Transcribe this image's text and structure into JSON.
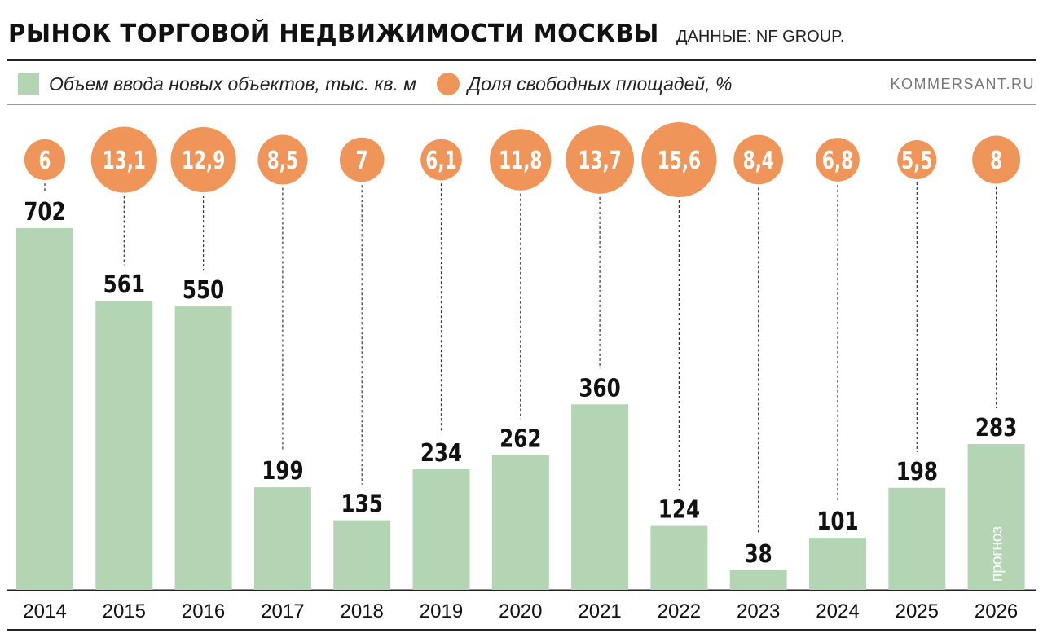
{
  "header": {
    "title": "РЫНОК ТОРГОВОЙ НЕДВИЖИМОСТИ МОСКВЫ",
    "source": "ДАННЫЕ: NF GROUP."
  },
  "legend": {
    "bars_label": "Объем ввода новых объектов, тыс. кв. м",
    "circles_label": "Доля свободных площадей, %",
    "site": "KOMMERSANT.RU"
  },
  "colors": {
    "bar": "#b3d5b3",
    "circle": "#f0955a",
    "circle_text": "#ffffff"
  },
  "chart_data": {
    "type": "bar",
    "categories": [
      "2014",
      "2015",
      "2016",
      "2017",
      "2018",
      "2019",
      "2020",
      "2021",
      "2022",
      "2023",
      "2024",
      "2025",
      "2026"
    ],
    "series": [
      {
        "name": "Объем ввода новых объектов, тыс. кв. м",
        "type": "bar",
        "values": [
          702,
          561,
          550,
          199,
          135,
          234,
          262,
          360,
          124,
          38,
          101,
          198,
          283
        ]
      },
      {
        "name": "Доля свободных площадей, %",
        "type": "circle",
        "values": [
          6,
          13.1,
          12.9,
          8.5,
          7,
          6.1,
          11.8,
          13.7,
          15.6,
          8.4,
          6.8,
          5.5,
          8
        ],
        "labels": [
          "6",
          "13,1",
          "12,9",
          "8,5",
          "7",
          "6,1",
          "11,8",
          "13,7",
          "15,6",
          "8,4",
          "6,8",
          "5,5",
          "8"
        ]
      }
    ],
    "ylim": [
      0,
      702
    ],
    "annotations": [
      {
        "category": "2026",
        "text": "прогноз"
      }
    ],
    "grid": false,
    "legend_position": "top-left"
  }
}
